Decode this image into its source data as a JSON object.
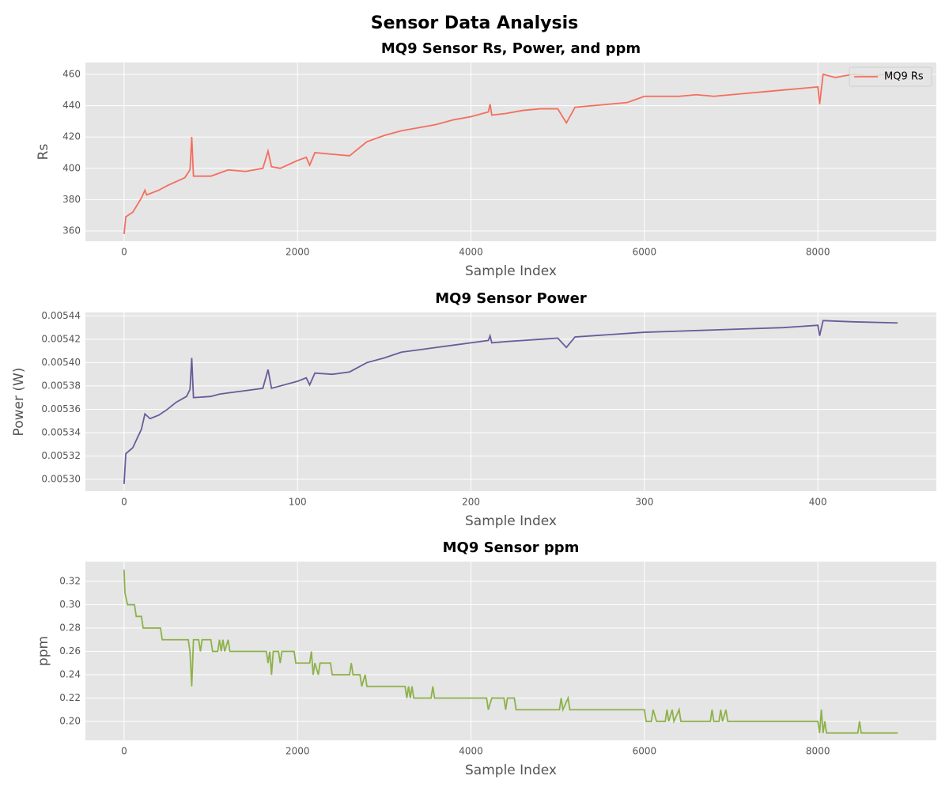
{
  "title": "Sensor Data Analysis",
  "chart_data": [
    {
      "type": "line",
      "title": "MQ9 Sensor Rs, Power, and ppm",
      "x_label": "Sample Index",
      "y_label": "Rs",
      "x": [
        0,
        20,
        100,
        200,
        240,
        260,
        400,
        500,
        700,
        760,
        780,
        800,
        1000,
        1100,
        1200,
        1400,
        1600,
        1660,
        1700,
        1800,
        2000,
        2100,
        2140,
        2200,
        2400,
        2600,
        2800,
        3000,
        3200,
        3400,
        3600,
        3800,
        4000,
        4200,
        4220,
        4240,
        4400,
        4600,
        4800,
        5000,
        5100,
        5200,
        5400,
        5600,
        5800,
        6000,
        6200,
        6400,
        6600,
        6800,
        7000,
        7200,
        7400,
        7600,
        7800,
        8000,
        8020,
        8060,
        8200,
        8400,
        8600,
        8800,
        8920
      ],
      "series": [
        {
          "name": "MQ9 Rs",
          "color": "#f46e5e",
          "values": [
            358,
            369,
            372,
            381,
            386,
            383,
            386,
            389,
            394,
            399,
            420,
            395,
            395,
            397,
            399,
            398,
            400,
            411,
            401,
            400,
            405,
            407,
            402,
            410,
            409,
            408,
            417,
            421,
            424,
            426,
            428,
            431,
            433,
            436,
            441,
            434,
            435,
            437,
            438,
            438,
            429,
            439,
            440,
            441,
            442,
            446,
            446,
            446,
            447,
            446,
            447,
            448,
            449,
            450,
            451,
            452,
            441,
            460,
            458,
            460,
            459,
            460,
            460
          ]
        }
      ],
      "xlim": [
        -446,
        9366
      ],
      "ylim": [
        353.4,
        467.6
      ],
      "xticks": [
        0,
        2000,
        4000,
        6000,
        8000
      ],
      "yticks": [
        360,
        380,
        400,
        420,
        440,
        460
      ],
      "grid": true,
      "legend": "upper right"
    },
    {
      "type": "line",
      "title": "MQ9 Sensor Power",
      "x_label": "Sample Index",
      "y_label": "Power (W)",
      "x": [
        0,
        1,
        5,
        10,
        12,
        15,
        20,
        25,
        30,
        36,
        38,
        39,
        40,
        50,
        55,
        60,
        70,
        80,
        83,
        85,
        90,
        100,
        105,
        107,
        110,
        120,
        130,
        140,
        150,
        160,
        170,
        180,
        190,
        200,
        210,
        211,
        212,
        220,
        240,
        250,
        255,
        260,
        280,
        300,
        320,
        340,
        360,
        380,
        400,
        401,
        403,
        420,
        446
      ],
      "series": [
        {
          "color": "#6b5b9a",
          "values": [
            0.005296,
            0.005322,
            0.005327,
            0.005343,
            0.005356,
            0.005352,
            0.005355,
            0.00536,
            0.005366,
            0.005371,
            0.005377,
            0.005404,
            0.00537,
            0.005371,
            0.005373,
            0.005374,
            0.005376,
            0.005378,
            0.005394,
            0.005378,
            0.00538,
            0.005384,
            0.005387,
            0.005381,
            0.005391,
            0.00539,
            0.005392,
            0.0054,
            0.005404,
            0.005409,
            0.005411,
            0.005413,
            0.005415,
            0.005417,
            0.005419,
            0.005423,
            0.005417,
            0.005418,
            0.00542,
            0.005421,
            0.005413,
            0.005422,
            0.005424,
            0.005426,
            0.005427,
            0.005428,
            0.005429,
            0.00543,
            0.005432,
            0.005423,
            0.005436,
            0.005435,
            0.005434
          ]
        }
      ],
      "xlim": [
        -22.3,
        468.3
      ],
      "ylim": [
        0.0052898,
        0.005443
      ],
      "xticks": [
        0,
        100,
        200,
        300,
        400
      ],
      "yticks": [
        {
          "value": 0.0053,
          "label": "0.00530"
        },
        0.00532,
        0.00534,
        0.00536,
        0.00538,
        {
          "value": 0.0054,
          "label": "0.00540"
        },
        0.00542,
        0.00544
      ],
      "grid": true
    },
    {
      "type": "line",
      "title": "MQ9 Sensor ppm",
      "x_label": "Sample Index",
      "y_label": "ppm",
      "x": [
        0,
        10,
        40,
        120,
        140,
        200,
        220,
        420,
        440,
        740,
        760,
        780,
        800,
        860,
        880,
        900,
        1000,
        1020,
        1080,
        1100,
        1120,
        1140,
        1160,
        1200,
        1220,
        1640,
        1660,
        1680,
        1700,
        1720,
        1780,
        1800,
        1820,
        1960,
        1980,
        2140,
        2160,
        2180,
        2200,
        2240,
        2260,
        2380,
        2400,
        2600,
        2620,
        2640,
        2720,
        2740,
        2780,
        2800,
        3240,
        3260,
        3280,
        3300,
        3320,
        3340,
        3540,
        3560,
        3580,
        4180,
        4200,
        4240,
        4380,
        4400,
        4420,
        4500,
        4520,
        5020,
        5040,
        5060,
        5120,
        5140,
        6000,
        6020,
        6080,
        6100,
        6140,
        6240,
        6260,
        6280,
        6320,
        6340,
        6400,
        6420,
        6760,
        6780,
        6800,
        6860,
        6880,
        6900,
        6940,
        6960,
        8000,
        8020,
        8040,
        8060,
        8080,
        8100,
        8460,
        8480,
        8500,
        8920
      ],
      "series": [
        {
          "color": "#8db24a",
          "values": [
            0.33,
            0.31,
            0.3,
            0.3,
            0.29,
            0.29,
            0.28,
            0.28,
            0.27,
            0.27,
            0.26,
            0.23,
            0.27,
            0.27,
            0.26,
            0.27,
            0.27,
            0.26,
            0.26,
            0.27,
            0.26,
            0.27,
            0.26,
            0.27,
            0.26,
            0.26,
            0.25,
            0.26,
            0.24,
            0.26,
            0.26,
            0.25,
            0.26,
            0.26,
            0.25,
            0.25,
            0.26,
            0.24,
            0.25,
            0.24,
            0.25,
            0.25,
            0.24,
            0.24,
            0.25,
            0.24,
            0.24,
            0.23,
            0.24,
            0.23,
            0.23,
            0.22,
            0.23,
            0.22,
            0.23,
            0.22,
            0.22,
            0.23,
            0.22,
            0.22,
            0.21,
            0.22,
            0.22,
            0.21,
            0.22,
            0.22,
            0.21,
            0.21,
            0.22,
            0.21,
            0.22,
            0.21,
            0.21,
            0.2,
            0.2,
            0.21,
            0.2,
            0.2,
            0.21,
            0.2,
            0.21,
            0.2,
            0.21,
            0.2,
            0.2,
            0.21,
            0.2,
            0.2,
            0.21,
            0.2,
            0.21,
            0.2,
            0.2,
            0.19,
            0.21,
            0.19,
            0.2,
            0.19,
            0.19,
            0.2,
            0.19,
            0.19
          ]
        }
      ],
      "xlim": [
        -446,
        9366
      ],
      "ylim": [
        0.1837,
        0.337
      ],
      "xticks": [
        0,
        2000,
        4000,
        6000,
        8000
      ],
      "yticks": [
        {
          "value": 0.2,
          "label": "0.20"
        },
        0.22,
        0.24,
        0.26,
        0.28,
        {
          "value": 0.3,
          "label": "0.30"
        },
        0.32
      ],
      "grid": true
    }
  ]
}
